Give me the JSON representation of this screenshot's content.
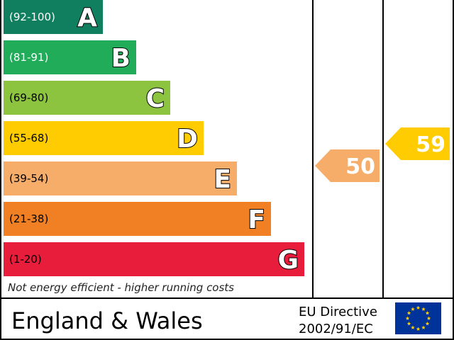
{
  "chart_data": {
    "type": "bar",
    "bands": [
      {
        "range": "(92-100)",
        "letter": "A",
        "color": "#0f7f5f",
        "range_color": "#ffffff"
      },
      {
        "range": "(81-91)",
        "letter": "B",
        "color": "#21ac5a",
        "range_color": "#ffffff"
      },
      {
        "range": "(69-80)",
        "letter": "C",
        "color": "#8cc43f",
        "range_color": "#000000"
      },
      {
        "range": "(55-68)",
        "letter": "D",
        "color": "#ffcc01",
        "range_color": "#000000"
      },
      {
        "range": "(39-54)",
        "letter": "E",
        "color": "#f6ad6a",
        "range_color": "#000000"
      },
      {
        "range": "(21-38)",
        "letter": "F",
        "color": "#f08023",
        "range_color": "#000000"
      },
      {
        "range": "(1-20)",
        "letter": "G",
        "color": "#e71d3b",
        "range_color": "#000000"
      }
    ],
    "ratings": [
      {
        "column": "current",
        "value": 50,
        "color": "#f6ad6a"
      },
      {
        "column": "potential",
        "value": 59,
        "color": "#ffcc01"
      }
    ],
    "footnote": "Not energy efficient - higher running costs",
    "region": "England & Wales",
    "directive_line1": "EU Directive",
    "directive_line2": "2002/91/EC",
    "flag_color": "#003399",
    "star_color": "#ffcc00"
  }
}
